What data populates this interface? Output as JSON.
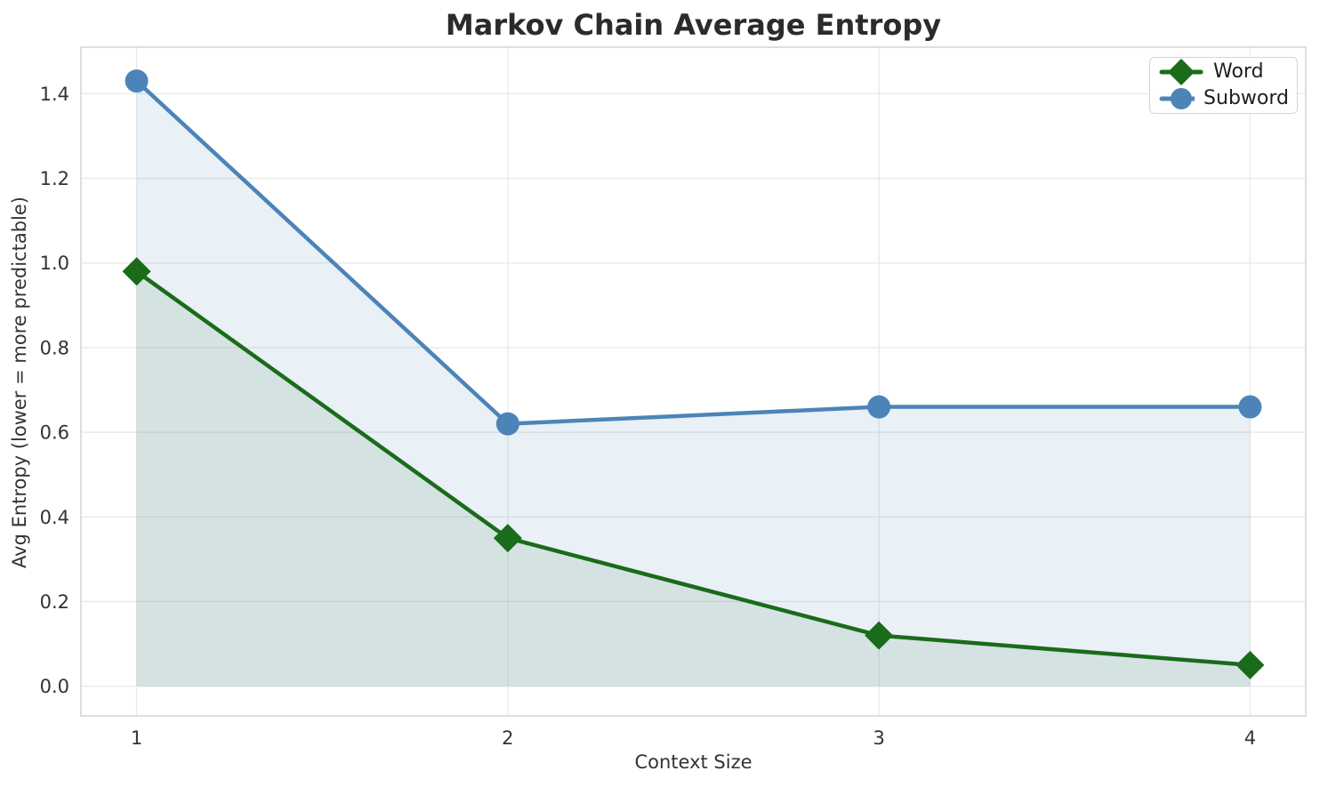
{
  "chart_data": {
    "type": "line",
    "title": "Markov Chain Average Entropy",
    "xlabel": "Context Size",
    "ylabel": "Avg Entropy (lower = more predictable)",
    "x": [
      1,
      2,
      3,
      4
    ],
    "series": [
      {
        "name": "Word",
        "values": [
          0.98,
          0.35,
          0.12,
          0.05
        ],
        "color": "#1a6b1a",
        "marker": "diamond",
        "fill_alpha": 0.1
      },
      {
        "name": "Subword",
        "values": [
          1.43,
          0.62,
          0.66,
          0.66
        ],
        "color": "#4c84b8",
        "marker": "circle",
        "fill_alpha": 0.12
      }
    ],
    "xtick_labels": [
      "1",
      "2",
      "3",
      "4"
    ],
    "ytick_values": [
      0.0,
      0.2,
      0.4,
      0.6,
      0.8,
      1.0,
      1.2,
      1.4
    ],
    "ytick_labels": [
      "0.0",
      "0.2",
      "0.4",
      "0.6",
      "0.8",
      "1.0",
      "1.2",
      "1.4"
    ],
    "xlim": [
      0.85,
      4.15
    ],
    "ylim": [
      -0.07,
      1.51
    ],
    "grid": true,
    "area_fill_baseline": 0,
    "legend_position": "upper right",
    "colors": {
      "grid": "#eaeaea",
      "spine": "#d6d6d6",
      "tick_text": "#333333",
      "title_text": "#2b2b2b",
      "background": "#ffffff"
    }
  }
}
